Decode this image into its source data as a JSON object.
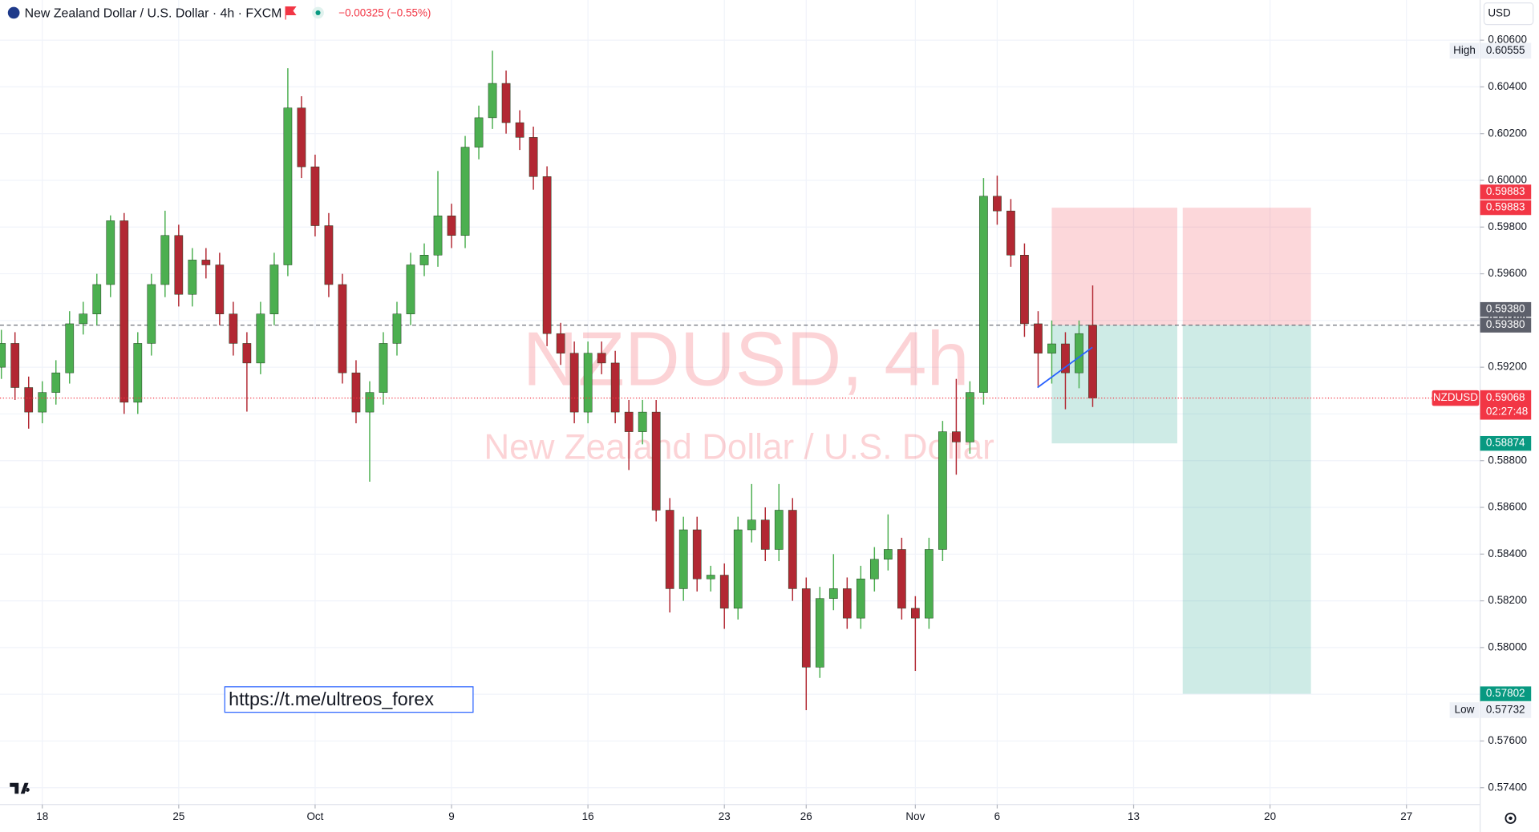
{
  "header": {
    "title": "New Zealand Dollar / U.S. Dollar · 4h · FXCM",
    "change": "−0.00325 (−0.55%)",
    "currency": "USD"
  },
  "watermark": {
    "symbol_line": "NZDUSD, 4h",
    "description": "New Zealand Dollar / U.S. Dollar"
  },
  "link": "https://t.me/ultreos_forex",
  "chart_data": {
    "type": "candlestick",
    "up_color": "#4caf50",
    "down_color": "#b22833",
    "xlim": [
      -1.55,
      52.7
    ],
    "ylim": [
      0.57328,
      0.60772
    ],
    "grid": true,
    "xticks": [
      {
        "value": 0,
        "label": "18"
      },
      {
        "value": 5,
        "label": "25"
      },
      {
        "value": 10,
        "label": "Oct"
      },
      {
        "value": 15,
        "label": "9"
      },
      {
        "value": 20,
        "label": "16"
      },
      {
        "value": 25,
        "label": "23"
      },
      {
        "value": 28,
        "label": "26"
      },
      {
        "value": 32,
        "label": "Nov"
      },
      {
        "value": 35,
        "label": "6"
      },
      {
        "value": 40,
        "label": "13"
      },
      {
        "value": 45,
        "label": "20"
      },
      {
        "value": 50,
        "label": "27"
      }
    ],
    "yticks": [
      {
        "value": 0.574,
        "label": "0.57400"
      },
      {
        "value": 0.576,
        "label": "0.57600"
      },
      {
        "value": 0.578,
        "label": "0.57800"
      },
      {
        "value": 0.58,
        "label": "0.58000"
      },
      {
        "value": 0.582,
        "label": "0.58200"
      },
      {
        "value": 0.584,
        "label": "0.58400"
      },
      {
        "value": 0.586,
        "label": "0.58600"
      },
      {
        "value": 0.588,
        "label": "0.58800"
      },
      {
        "value": 0.59,
        "label": "0.59000"
      },
      {
        "value": 0.592,
        "label": "0.59200"
      },
      {
        "value": 0.594,
        "label": "0.59400"
      },
      {
        "value": 0.596,
        "label": "0.59600"
      },
      {
        "value": 0.598,
        "label": "0.59800"
      },
      {
        "value": 0.6,
        "label": "0.60000"
      },
      {
        "value": 0.602,
        "label": "0.60200"
      },
      {
        "value": 0.604,
        "label": "0.60400"
      },
      {
        "value": 0.606,
        "label": "0.60600"
      }
    ],
    "x": [
      -1.5,
      -1,
      -0.5,
      0,
      0.5,
      1,
      1.5,
      2,
      2.5,
      3,
      3.5,
      4,
      4.5,
      5,
      5.5,
      6,
      6.5,
      7,
      7.5,
      8,
      8.5,
      9,
      9.5,
      10,
      10.5,
      11,
      11.5,
      12,
      12.5,
      13,
      13.5,
      14,
      14.5,
      15,
      15.5,
      16,
      16.5,
      17,
      17.5,
      18,
      18.5,
      19,
      19.5,
      20,
      20.5,
      21,
      21.5,
      22,
      22.5,
      23,
      23.5,
      24,
      24.5,
      25,
      25.5,
      26,
      26.5,
      27,
      27.5,
      28,
      28.5,
      29,
      29.5,
      30,
      30.5,
      31,
      31.5,
      32,
      32.5,
      33,
      33.5,
      34,
      34.5,
      35,
      35.5,
      36,
      36.5,
      37,
      37.5,
      38,
      38.5
    ],
    "ohlc": [
      [
        0.592,
        0.5936,
        0.5915,
        0.59302
      ],
      [
        0.59302,
        0.5935,
        0.5906,
        0.59113
      ],
      [
        0.59113,
        0.5916,
        0.58937,
        0.59008
      ],
      [
        0.59008,
        0.5914,
        0.5896,
        0.59092
      ],
      [
        0.59092,
        0.5923,
        0.5904,
        0.59176
      ],
      [
        0.59176,
        0.5944,
        0.5913,
        0.59386
      ],
      [
        0.59386,
        0.5948,
        0.5934,
        0.59428
      ],
      [
        0.59428,
        0.596,
        0.5938,
        0.59554
      ],
      [
        0.59554,
        0.5985,
        0.595,
        0.59827
      ],
      [
        0.59827,
        0.5986,
        0.59,
        0.5905
      ],
      [
        0.5905,
        0.5935,
        0.59,
        0.59302
      ],
      [
        0.59302,
        0.596,
        0.5925,
        0.59554
      ],
      [
        0.59554,
        0.5987,
        0.595,
        0.59764
      ],
      [
        0.59764,
        0.5981,
        0.5946,
        0.59512
      ],
      [
        0.59512,
        0.5971,
        0.5946,
        0.59659
      ],
      [
        0.59659,
        0.5971,
        0.5958,
        0.59638
      ],
      [
        0.59638,
        0.5969,
        0.5938,
        0.59428
      ],
      [
        0.59428,
        0.5948,
        0.5925,
        0.59302
      ],
      [
        0.59302,
        0.5935,
        0.5901,
        0.59218
      ],
      [
        0.59218,
        0.5948,
        0.5917,
        0.59428
      ],
      [
        0.59428,
        0.5969,
        0.5938,
        0.59638
      ],
      [
        0.59638,
        0.6048,
        0.5959,
        0.6031
      ],
      [
        0.6031,
        0.6036,
        0.6001,
        0.60058
      ],
      [
        0.60058,
        0.6011,
        0.5976,
        0.59806
      ],
      [
        0.59806,
        0.5986,
        0.595,
        0.59554
      ],
      [
        0.59554,
        0.596,
        0.5913,
        0.59176
      ],
      [
        0.59176,
        0.5923,
        0.5896,
        0.59008
      ],
      [
        0.59008,
        0.5914,
        0.5871,
        0.59092
      ],
      [
        0.59092,
        0.5935,
        0.5904,
        0.59302
      ],
      [
        0.59302,
        0.5948,
        0.5925,
        0.59428
      ],
      [
        0.59428,
        0.5969,
        0.5938,
        0.59638
      ],
      [
        0.59638,
        0.5973,
        0.5959,
        0.5968
      ],
      [
        0.5968,
        0.6004,
        0.5963,
        0.59848
      ],
      [
        0.59848,
        0.599,
        0.5971,
        0.59764
      ],
      [
        0.59764,
        0.6019,
        0.5971,
        0.60142
      ],
      [
        0.60142,
        0.6032,
        0.6009,
        0.60268
      ],
      [
        0.60268,
        0.60555,
        0.6022,
        0.60415
      ],
      [
        0.60415,
        0.6047,
        0.602,
        0.60247
      ],
      [
        0.60247,
        0.603,
        0.6013,
        0.60184
      ],
      [
        0.60184,
        0.6023,
        0.5996,
        0.60016
      ],
      [
        0.60016,
        0.6006,
        0.5929,
        0.59344
      ],
      [
        0.59344,
        0.5939,
        0.5921,
        0.5926
      ],
      [
        0.5926,
        0.5931,
        0.5896,
        0.59008
      ],
      [
        0.59008,
        0.5931,
        0.5896,
        0.5926
      ],
      [
        0.5926,
        0.5931,
        0.5917,
        0.59218
      ],
      [
        0.59218,
        0.5927,
        0.5896,
        0.59008
      ],
      [
        0.59008,
        0.5906,
        0.5876,
        0.58924
      ],
      [
        0.58924,
        0.5906,
        0.5887,
        0.59008
      ],
      [
        0.59008,
        0.5906,
        0.5854,
        0.58588
      ],
      [
        0.58588,
        0.5864,
        0.5815,
        0.58252
      ],
      [
        0.58252,
        0.5856,
        0.582,
        0.58504
      ],
      [
        0.58504,
        0.5856,
        0.5824,
        0.58294
      ],
      [
        0.58294,
        0.5835,
        0.5824,
        0.5831
      ],
      [
        0.5831,
        0.5836,
        0.5808,
        0.58168
      ],
      [
        0.58168,
        0.5856,
        0.5812,
        0.58504
      ],
      [
        0.58504,
        0.587,
        0.5845,
        0.58546
      ],
      [
        0.58546,
        0.586,
        0.5837,
        0.5842
      ],
      [
        0.5842,
        0.587,
        0.5837,
        0.58588
      ],
      [
        0.58588,
        0.5864,
        0.582,
        0.58252
      ],
      [
        0.58252,
        0.583,
        0.57732,
        0.57916
      ],
      [
        0.57916,
        0.5826,
        0.5787,
        0.5821
      ],
      [
        0.5821,
        0.584,
        0.5816,
        0.58252
      ],
      [
        0.58252,
        0.583,
        0.5808,
        0.58126
      ],
      [
        0.58126,
        0.5835,
        0.5808,
        0.58294
      ],
      [
        0.58294,
        0.5843,
        0.5824,
        0.58378
      ],
      [
        0.58378,
        0.5857,
        0.5833,
        0.5842
      ],
      [
        0.5842,
        0.5847,
        0.5812,
        0.58168
      ],
      [
        0.58168,
        0.5822,
        0.579,
        0.58126
      ],
      [
        0.58126,
        0.5847,
        0.5808,
        0.5842
      ],
      [
        0.5842,
        0.5897,
        0.5837,
        0.58924
      ],
      [
        0.58924,
        0.5915,
        0.5874,
        0.5888
      ],
      [
        0.5888,
        0.5914,
        0.5883,
        0.59092
      ],
      [
        0.59092,
        0.6001,
        0.5904,
        0.59932
      ],
      [
        0.59932,
        0.6002,
        0.5981,
        0.59869
      ],
      [
        0.59869,
        0.5992,
        0.5963,
        0.5968
      ],
      [
        0.5968,
        0.5973,
        0.5933,
        0.59386
      ],
      [
        0.59386,
        0.5944,
        0.5912,
        0.5926
      ],
      [
        0.5926,
        0.594,
        0.5913,
        0.593
      ],
      [
        0.593,
        0.5935,
        0.5902,
        0.59176
      ],
      [
        0.59176,
        0.594,
        0.5911,
        0.59344
      ],
      [
        0.5938,
        0.5955,
        0.5903,
        0.59068
      ]
    ],
    "positions": [
      {
        "x": [
          37,
          41.6
        ],
        "entry": {
          "value": 0.5938,
          "label": "0.59380"
        },
        "stop": {
          "value": 0.59883,
          "label": "0.59883"
        },
        "target": {
          "value": 0.58874,
          "label": "0.58874"
        }
      },
      {
        "x": [
          41.8,
          46.5
        ],
        "entry": {
          "value": 0.5938,
          "label": "0.59380"
        },
        "stop": {
          "value": 0.59883,
          "label": "0.59883"
        },
        "target": {
          "value": 0.57802,
          "label": "0.57802"
        }
      }
    ],
    "last": {
      "symbol": "NZDUSD",
      "value": 0.59068,
      "label": "0.59068",
      "countdown": "02:27:48"
    },
    "high": {
      "name": "High",
      "value": 0.60555,
      "label": "0.60555"
    },
    "low": {
      "name": "Low",
      "value": 0.57732,
      "label": "0.57732"
    }
  }
}
